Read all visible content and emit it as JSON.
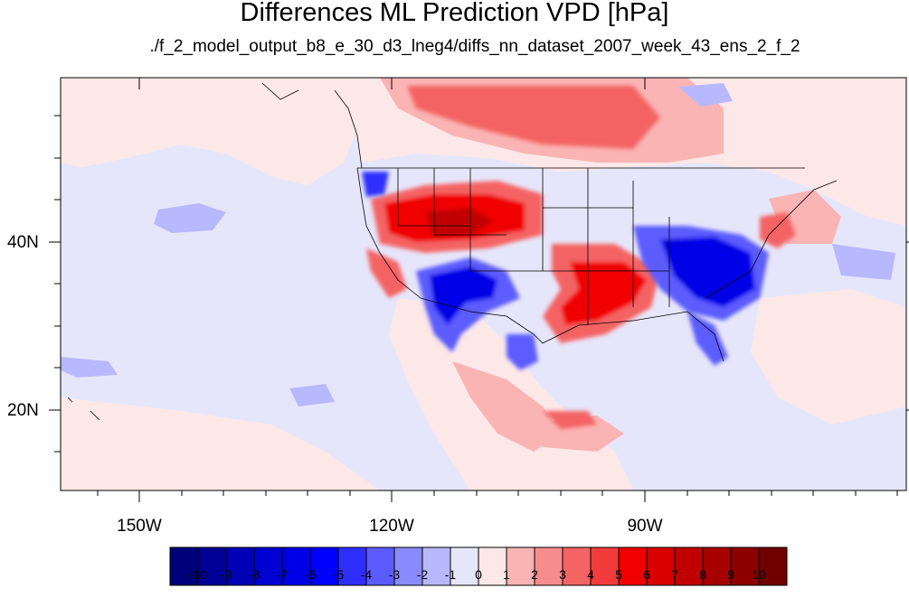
{
  "title": "Differences ML Prediction VPD [hPa]",
  "subtitle": "./f_2_model_output_b8_e_30_d3_lneg4/diffs_nn_dataset_2007_week_43_ens_2_f_2",
  "lat_labels": [
    "40N",
    "20N"
  ],
  "lon_labels": [
    "150W",
    "120W",
    "90W"
  ],
  "colorbar": {
    "labels": [
      "-10",
      "-9",
      "-8",
      "-7",
      "-6",
      "-5",
      "-4",
      "-3",
      "-2",
      "-1",
      "0",
      "1",
      "2",
      "3",
      "4",
      "5",
      "6",
      "7",
      "8",
      "9",
      "10"
    ],
    "colors": [
      "#00007a",
      "#000096",
      "#0000b4",
      "#0000d2",
      "#0000e6",
      "#0000ff",
      "#2e2eff",
      "#5b5bff",
      "#8a8aff",
      "#b8b8ff",
      "#e6e6fa",
      "#fde8e8",
      "#fab4b4",
      "#f78c8c",
      "#f46464",
      "#f23c3c",
      "#f00000",
      "#d80000",
      "#c00000",
      "#a60000",
      "#8c0000",
      "#700000"
    ]
  },
  "colors": {
    "background": "#e6e6fa",
    "frame": "#000000"
  }
}
